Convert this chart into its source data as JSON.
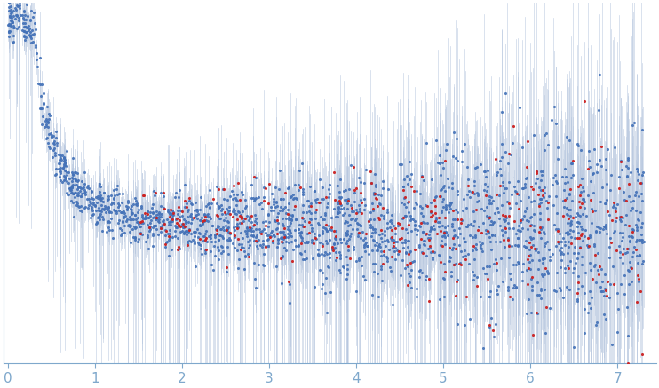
{
  "title": "",
  "xlabel": "",
  "ylabel": "",
  "xlim": [
    -0.05,
    7.45
  ],
  "background_color": "#ffffff",
  "dot_color_blue": "#4472b8",
  "dot_color_red": "#cc2222",
  "error_color": "#b8c8e0",
  "dot_size_blue": 5,
  "dot_size_red": 5,
  "tick_color": "#7fa8cc",
  "tick_label_color": "#7fa8cc",
  "n_points": 2500,
  "seed": 77
}
